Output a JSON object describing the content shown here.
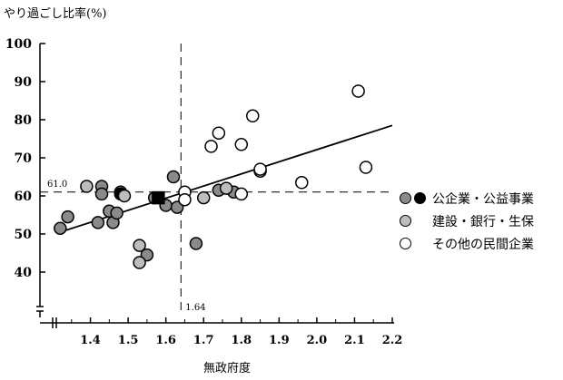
{
  "chart_data": {
    "type": "scatter",
    "ylabel": "やり過ごし比率(%)",
    "xlabel": "無政府度",
    "xlim": [
      1.3,
      2.2
    ],
    "ylim": [
      30,
      100
    ],
    "xticks": [
      "1.4",
      "1.5",
      "1.6",
      "1.7",
      "1.8",
      "1.9",
      "2.0",
      "2.1",
      "2.2"
    ],
    "yticks": [
      "40",
      "50",
      "60",
      "70",
      "80",
      "90",
      "100"
    ],
    "reference_lines": {
      "vertical": {
        "x": 1.64,
        "label": "1.64"
      },
      "horizontal": {
        "y": 61.0,
        "label": "61.0"
      }
    },
    "regression_line": {
      "from": [
        1.32,
        50.5
      ],
      "to": [
        2.2,
        78.5
      ]
    },
    "series": [
      {
        "name": "公企業・公益事業",
        "fill": "#8a8a8a",
        "points": [
          [
            1.32,
            51.5
          ],
          [
            1.34,
            54.5
          ],
          [
            1.43,
            62.5
          ],
          [
            1.43,
            60.5
          ],
          [
            1.42,
            53
          ],
          [
            1.45,
            56
          ],
          [
            1.46,
            53
          ],
          [
            1.47,
            55.5
          ],
          [
            1.48,
            61
          ],
          [
            1.55,
            44.5
          ],
          [
            1.57,
            59.5
          ],
          [
            1.6,
            57.5
          ],
          [
            1.62,
            65
          ],
          [
            1.63,
            57
          ],
          [
            1.68,
            47.5
          ],
          [
            1.74,
            61.5
          ],
          [
            1.78,
            61
          ]
        ]
      },
      {
        "name": "公企業・公益事業 (黒)",
        "fill": "#000000",
        "points": [
          [
            1.48,
            60.5
          ]
        ]
      },
      {
        "name": "公企業・公益事業 (四角)",
        "marker": "square",
        "fill": "#000000",
        "points": [
          [
            1.58,
            59.5
          ]
        ]
      },
      {
        "name": "建設・銀行・生保",
        "fill": "#bdbdbd",
        "points": [
          [
            1.39,
            62.5
          ],
          [
            1.49,
            60
          ],
          [
            1.53,
            47
          ],
          [
            1.53,
            42.5
          ],
          [
            1.7,
            59.5
          ],
          [
            1.76,
            62
          ]
        ]
      },
      {
        "name": "その他の民間企業",
        "fill": "#ffffff",
        "points": [
          [
            1.65,
            61
          ],
          [
            1.65,
            59
          ],
          [
            1.72,
            73
          ],
          [
            1.74,
            76.5
          ],
          [
            1.8,
            60.5
          ],
          [
            1.8,
            73.5
          ],
          [
            1.83,
            81
          ],
          [
            1.85,
            66.5
          ],
          [
            1.85,
            67
          ],
          [
            1.96,
            63.5
          ],
          [
            2.11,
            87.5
          ],
          [
            2.13,
            67.5
          ]
        ]
      }
    ]
  },
  "legend": [
    {
      "label": "公企業・公益事業",
      "colors": [
        "#8a8a8a",
        "#000000"
      ]
    },
    {
      "label": "建設・銀行・生保",
      "colors": [
        "#bdbdbd"
      ]
    },
    {
      "label": "その他の民間企業",
      "colors": [
        "#ffffff"
      ]
    }
  ]
}
